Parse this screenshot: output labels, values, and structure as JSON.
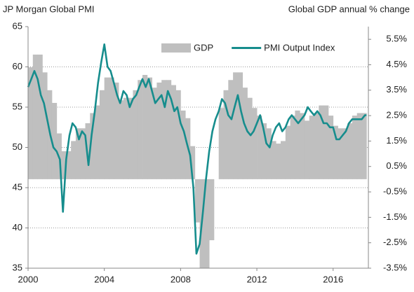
{
  "chart_data": {
    "type": "combo",
    "title": "JP Morgan Global PMI",
    "y2_title": "Global GDP annual % change",
    "xlim": [
      2000,
      2017.85
    ],
    "xticks": [
      2000,
      2004,
      2008,
      2012,
      2016
    ],
    "ylim": [
      35,
      65
    ],
    "yticks": [
      35,
      40,
      45,
      50,
      55,
      60,
      65
    ],
    "y2lim": [
      -3.5,
      6.0
    ],
    "y2ticks": [
      {
        "value": -3.5,
        "label": "-3.5%"
      },
      {
        "value": -2.5,
        "label": "-2.5%"
      },
      {
        "value": -1.5,
        "label": "-1.5%"
      },
      {
        "value": -0.5,
        "label": "-0.5%"
      },
      {
        "value": 0.5,
        "label": "0.5%"
      },
      {
        "value": 1.5,
        "label": "1.5%"
      },
      {
        "value": 2.5,
        "label": "2.5%"
      },
      {
        "value": 3.5,
        "label": "3.5%"
      },
      {
        "value": 4.5,
        "label": "4.5%"
      },
      {
        "value": 5.5,
        "label": "5.5%"
      }
    ],
    "grid": true,
    "legend": "top",
    "series": [
      {
        "name": "GDP",
        "type": "bar",
        "axis": "y2",
        "color": "#bfbfbf",
        "x": [
          2000,
          2000.25,
          2000.5,
          2000.75,
          2001,
          2001.25,
          2001.5,
          2001.75,
          2002,
          2002.25,
          2002.5,
          2002.75,
          2003,
          2003.25,
          2003.5,
          2003.75,
          2004,
          2004.25,
          2004.5,
          2004.75,
          2005,
          2005.25,
          2005.5,
          2005.75,
          2006,
          2006.25,
          2006.5,
          2006.75,
          2007,
          2007.25,
          2007.5,
          2007.75,
          2008,
          2008.25,
          2008.5,
          2008.75,
          2009,
          2009.25,
          2009.5,
          2009.75,
          2010,
          2010.25,
          2010.5,
          2010.75,
          2011,
          2011.25,
          2011.5,
          2011.75,
          2012,
          2012.25,
          2012.5,
          2012.75,
          2013,
          2013.25,
          2013.5,
          2013.75,
          2014,
          2014.25,
          2014.5,
          2014.75,
          2015,
          2015.25,
          2015.5,
          2015.75,
          2016,
          2016.25,
          2016.5,
          2016.75,
          2017,
          2017.25,
          2017.5
        ],
        "values": [
          4.4,
          4.9,
          4.9,
          4.2,
          3.5,
          3.0,
          1.8,
          1.1,
          1.1,
          1.5,
          2.0,
          2.0,
          2.2,
          2.6,
          2.9,
          3.5,
          4.0,
          4.0,
          3.8,
          3.1,
          3.2,
          3.2,
          3.5,
          3.9,
          4.1,
          4.0,
          3.6,
          3.8,
          3.9,
          3.9,
          3.7,
          3.5,
          2.7,
          2.4,
          1.3,
          -1.7,
          -3.5,
          -3.5,
          -2.4,
          0.0,
          2.8,
          3.5,
          3.9,
          4.2,
          4.2,
          3.6,
          3.2,
          2.8,
          2.5,
          2.2,
          2.0,
          1.5,
          1.4,
          1.5,
          2.1,
          2.5,
          2.7,
          2.6,
          2.3,
          2.5,
          2.6,
          2.9,
          2.9,
          2.5,
          2.1,
          2.0,
          2.0,
          2.2,
          2.5,
          2.6,
          2.6
        ]
      },
      {
        "name": "PMI Output Index",
        "type": "line",
        "axis": "y",
        "color": "#168d8d",
        "x": [
          2000,
          2000.17,
          2000.33,
          2000.5,
          2000.67,
          2000.83,
          2001,
          2001.17,
          2001.33,
          2001.5,
          2001.67,
          2001.83,
          2002,
          2002.17,
          2002.33,
          2002.5,
          2002.67,
          2002.83,
          2003,
          2003.17,
          2003.33,
          2003.5,
          2003.67,
          2003.83,
          2004,
          2004.17,
          2004.33,
          2004.5,
          2004.67,
          2004.83,
          2005,
          2005.17,
          2005.33,
          2005.5,
          2005.67,
          2005.83,
          2006,
          2006.17,
          2006.33,
          2006.5,
          2006.67,
          2006.83,
          2007,
          2007.17,
          2007.33,
          2007.5,
          2007.67,
          2007.83,
          2008,
          2008.17,
          2008.33,
          2008.5,
          2008.67,
          2008.83,
          2009,
          2009.17,
          2009.33,
          2009.5,
          2009.67,
          2009.83,
          2010,
          2010.17,
          2010.33,
          2010.5,
          2010.67,
          2010.83,
          2011,
          2011.17,
          2011.33,
          2011.5,
          2011.67,
          2011.83,
          2012,
          2012.17,
          2012.33,
          2012.5,
          2012.67,
          2012.83,
          2013,
          2013.17,
          2013.33,
          2013.5,
          2013.67,
          2013.83,
          2014,
          2014.17,
          2014.33,
          2014.5,
          2014.67,
          2014.83,
          2015,
          2015.17,
          2015.33,
          2015.5,
          2015.67,
          2015.83,
          2016,
          2016.17,
          2016.33,
          2016.5,
          2016.67,
          2016.83,
          2017,
          2017.17,
          2017.33,
          2017.5,
          2017.67,
          2017.75
        ],
        "values": [
          57.5,
          58.5,
          59.5,
          58.5,
          56.5,
          55.5,
          53.5,
          51.5,
          50.0,
          49.5,
          48.5,
          42.0,
          48.5,
          51.5,
          53.0,
          52.5,
          51.0,
          52.0,
          51.5,
          47.8,
          51.5,
          54.5,
          58.0,
          60.5,
          62.8,
          60.0,
          59.5,
          58.0,
          56.5,
          55.5,
          57.0,
          56.5,
          55.0,
          56.0,
          56.5,
          57.5,
          58.5,
          57.5,
          58.5,
          57.0,
          55.5,
          56.0,
          56.5,
          55.0,
          57.0,
          56.0,
          54.5,
          55.0,
          53.0,
          52.0,
          50.5,
          49.0,
          45.0,
          36.8,
          38.0,
          42.0,
          46.0,
          49.5,
          52.0,
          53.5,
          54.5,
          56.0,
          55.5,
          54.0,
          53.5,
          55.0,
          56.5,
          54.5,
          53.0,
          52.0,
          51.5,
          52.0,
          53.0,
          54.0,
          52.5,
          50.5,
          50.0,
          51.5,
          52.5,
          53.0,
          52.0,
          52.5,
          53.5,
          54.0,
          53.5,
          53.0,
          53.5,
          54.0,
          55.0,
          54.5,
          54.0,
          54.5,
          54.0,
          53.0,
          53.0,
          52.5,
          52.5,
          51.0,
          51.0,
          51.5,
          52.0,
          53.0,
          53.5,
          53.5,
          53.5,
          53.5,
          54.0,
          54.0
        ]
      }
    ]
  }
}
